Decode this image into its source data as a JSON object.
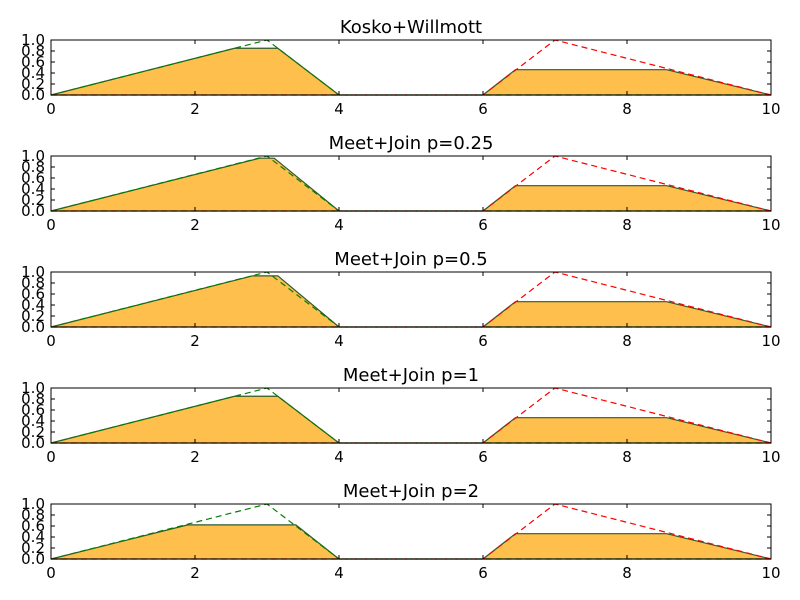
{
  "chart_data": [
    {
      "type": "area",
      "title": "Kosko+Willmott",
      "xlim": [
        0,
        10
      ],
      "ylim": [
        0,
        1
      ],
      "xticks": [
        "0",
        "2",
        "4",
        "6",
        "8",
        "10"
      ],
      "yticks": [
        "0.0",
        "0.2",
        "0.4",
        "0.6",
        "0.8",
        "1.0"
      ],
      "grid": false,
      "series": [
        {
          "kind": "filled-result",
          "x": [
            0,
            2.55,
            3.15,
            4,
            6,
            6.45,
            8.55,
            10
          ],
          "y": [
            0,
            0.85,
            0.85,
            0,
            0,
            0.46,
            0.46,
            0
          ]
        },
        {
          "kind": "dashed-green",
          "x": [
            0,
            3,
            4,
            10
          ],
          "y": [
            0,
            1,
            0,
            0
          ]
        },
        {
          "kind": "dashed-red",
          "x": [
            0,
            6,
            7,
            10
          ],
          "y": [
            0,
            0,
            1,
            0
          ]
        }
      ]
    },
    {
      "type": "area",
      "title": "Meet+Join p=0.25",
      "xlim": [
        0,
        10
      ],
      "ylim": [
        0,
        1
      ],
      "xticks": [
        "0",
        "2",
        "4",
        "6",
        "8",
        "10"
      ],
      "yticks": [
        "0.0",
        "0.2",
        "0.4",
        "0.6",
        "0.8",
        "1.0"
      ],
      "grid": false,
      "series": [
        {
          "kind": "filled-result",
          "x": [
            0,
            2.9,
            3.1,
            4,
            6,
            6.45,
            8.55,
            10
          ],
          "y": [
            0,
            0.96,
            0.96,
            0,
            0,
            0.46,
            0.46,
            0
          ]
        },
        {
          "kind": "dashed-green",
          "x": [
            0,
            3,
            4,
            10
          ],
          "y": [
            0,
            1,
            0,
            0
          ]
        },
        {
          "kind": "dashed-red",
          "x": [
            0,
            6,
            7,
            10
          ],
          "y": [
            0,
            0,
            1,
            0
          ]
        }
      ]
    },
    {
      "type": "area",
      "title": "Meet+Join p=0.5",
      "xlim": [
        0,
        10
      ],
      "ylim": [
        0,
        1
      ],
      "xticks": [
        "0",
        "2",
        "4",
        "6",
        "8",
        "10"
      ],
      "yticks": [
        "0.0",
        "0.2",
        "0.4",
        "0.6",
        "0.8",
        "1.0"
      ],
      "grid": false,
      "series": [
        {
          "kind": "filled-result",
          "x": [
            0,
            2.8,
            3.15,
            4,
            6,
            6.45,
            8.55,
            10
          ],
          "y": [
            0,
            0.93,
            0.93,
            0,
            0,
            0.46,
            0.46,
            0
          ]
        },
        {
          "kind": "dashed-green",
          "x": [
            0,
            3,
            4,
            10
          ],
          "y": [
            0,
            1,
            0,
            0
          ]
        },
        {
          "kind": "dashed-red",
          "x": [
            0,
            6,
            7,
            10
          ],
          "y": [
            0,
            0,
            1,
            0
          ]
        }
      ]
    },
    {
      "type": "area",
      "title": "Meet+Join p=1",
      "xlim": [
        0,
        10
      ],
      "ylim": [
        0,
        1
      ],
      "xticks": [
        "0",
        "2",
        "4",
        "6",
        "8",
        "10"
      ],
      "yticks": [
        "0.0",
        "0.2",
        "0.4",
        "0.6",
        "0.8",
        "1.0"
      ],
      "grid": false,
      "series": [
        {
          "kind": "filled-result",
          "x": [
            0,
            2.55,
            3.15,
            4,
            6,
            6.45,
            8.55,
            10
          ],
          "y": [
            0,
            0.85,
            0.85,
            0,
            0,
            0.46,
            0.46,
            0
          ]
        },
        {
          "kind": "dashed-green",
          "x": [
            0,
            3,
            4,
            10
          ],
          "y": [
            0,
            1,
            0,
            0
          ]
        },
        {
          "kind": "dashed-red",
          "x": [
            0,
            6,
            7,
            10
          ],
          "y": [
            0,
            0,
            1,
            0
          ]
        }
      ]
    },
    {
      "type": "area",
      "title": "Meet+Join p=2",
      "xlim": [
        0,
        10
      ],
      "ylim": [
        0,
        1
      ],
      "xticks": [
        "0",
        "2",
        "4",
        "6",
        "8",
        "10"
      ],
      "yticks": [
        "0.0",
        "0.2",
        "0.4",
        "0.6",
        "0.8",
        "1.0"
      ],
      "grid": false,
      "series": [
        {
          "kind": "filled-result",
          "x": [
            0,
            1.9,
            3.4,
            4,
            6,
            6.45,
            8.55,
            10
          ],
          "y": [
            0,
            0.62,
            0.62,
            0,
            0,
            0.46,
            0.46,
            0
          ]
        },
        {
          "kind": "dashed-green",
          "x": [
            0,
            3,
            4,
            10
          ],
          "y": [
            0,
            1,
            0,
            0
          ]
        },
        {
          "kind": "dashed-red",
          "x": [
            0,
            6,
            7,
            10
          ],
          "y": [
            0,
            0,
            1,
            0
          ]
        }
      ]
    }
  ],
  "colors": {
    "fill": "#ffbf4d",
    "fill_edge": "#2d5a2d",
    "dashed_green": "#007f00",
    "dashed_red": "#ff0000",
    "axes": "#000000"
  }
}
